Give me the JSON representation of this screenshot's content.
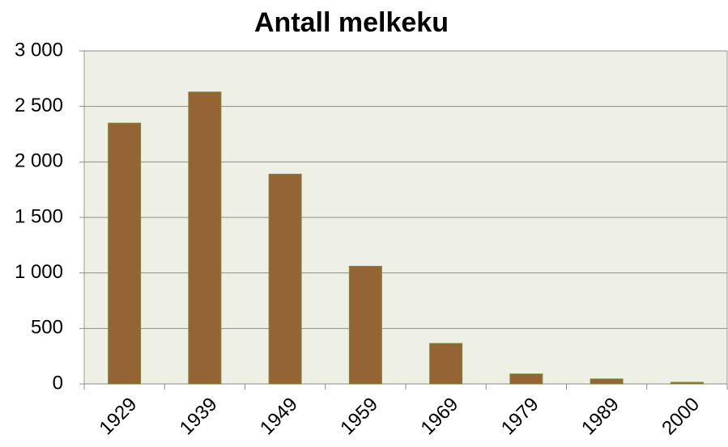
{
  "chart_data": {
    "type": "bar",
    "title": "Antall melkeku",
    "categories": [
      "1929",
      "1939",
      "1949",
      "1959",
      "1969",
      "1979",
      "1989",
      "2000"
    ],
    "values": [
      2350,
      2630,
      1890,
      1060,
      365,
      90,
      45,
      15
    ],
    "color": "#956434",
    "ylim": [
      0,
      3000
    ],
    "yticks": [
      0,
      500,
      {
        "value": 1000,
        "label": "1 000"
      },
      {
        "value": 1500,
        "label": "1 500"
      },
      {
        "value": 2000,
        "label": "2 000"
      },
      {
        "value": 2500,
        "label": "2 500"
      },
      {
        "value": 3000,
        "label": "3 000"
      }
    ],
    "grid": true
  }
}
